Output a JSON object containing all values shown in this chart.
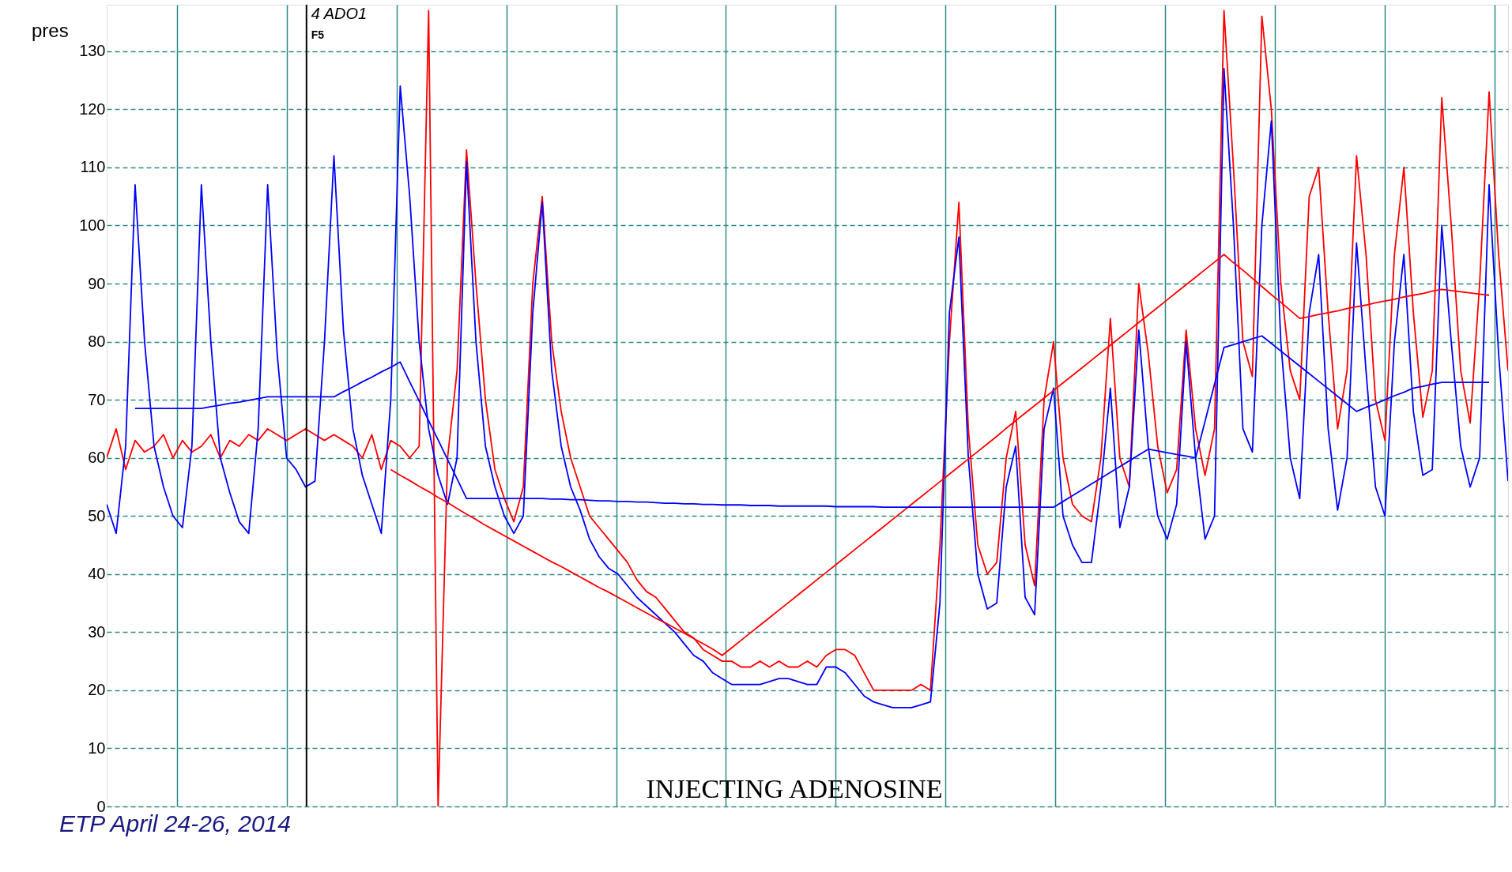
{
  "chart_data": {
    "type": "line",
    "ylabel": "pres",
    "grid": true,
    "tick_labels": "y",
    "marker": "none",
    "line_style": "solid",
    "categories": [
      null,
      null,
      null,
      null,
      null,
      null,
      null,
      null,
      null,
      null,
      null,
      null,
      null,
      null,
      null,
      null,
      null,
      null,
      null,
      null,
      null,
      null,
      null,
      null,
      null,
      null,
      null,
      null,
      null,
      null,
      null,
      null,
      null,
      null,
      null,
      null,
      null,
      null,
      null,
      null,
      null,
      null,
      null,
      null,
      null,
      null,
      null,
      null,
      null,
      null,
      null,
      null,
      null,
      null,
      null,
      null,
      null,
      null,
      null,
      null,
      null,
      null,
      null,
      null,
      null,
      null,
      null,
      null,
      null,
      null,
      null,
      null,
      null,
      null,
      null,
      null,
      null,
      null,
      null,
      null,
      null,
      null,
      null,
      null,
      null,
      null,
      null,
      null,
      null,
      null,
      null,
      null,
      null,
      null,
      null,
      null,
      null,
      null,
      null,
      null,
      null,
      null,
      null,
      null,
      null,
      null,
      null,
      null,
      null,
      null,
      null,
      null,
      null,
      null,
      null,
      null,
      null,
      null,
      null,
      null,
      null,
      null,
      null,
      null,
      null,
      null,
      null,
      null,
      null,
      null,
      null,
      null,
      null,
      null,
      null,
      null,
      null,
      null,
      null,
      null,
      null,
      null,
      null,
      null,
      null,
      null,
      null,
      null,
      null
    ],
    "ylim": [
      0,
      138
    ],
    "yticks": [
      0,
      10,
      20,
      30,
      40,
      50,
      60,
      70,
      80,
      90,
      100,
      110,
      120,
      130
    ],
    "series": [
      {
        "color": "#ff0000",
        "values": [
          60,
          65,
          58,
          63,
          61,
          62,
          64,
          60,
          63,
          61,
          62,
          64,
          60,
          63,
          62,
          64,
          63,
          65,
          64,
          63,
          64,
          65,
          64,
          63,
          64,
          63,
          62,
          60,
          64,
          58,
          63,
          62,
          60,
          62,
          137,
          0,
          60,
          75,
          113,
          90,
          70,
          58,
          53,
          49,
          55,
          90,
          105,
          80,
          68,
          60,
          55,
          50,
          48,
          46,
          44,
          42,
          39,
          37,
          36,
          34,
          32,
          30,
          29,
          27,
          26,
          25,
          25,
          24,
          24,
          25,
          24,
          25,
          24,
          24,
          25,
          24,
          26,
          27,
          27,
          26,
          23,
          20,
          20,
          20,
          20,
          20,
          21,
          20,
          45,
          80,
          104,
          65,
          45,
          40,
          42,
          60,
          68,
          45,
          38,
          70,
          80,
          60,
          52,
          50,
          49,
          60,
          84,
          60,
          55,
          90,
          78,
          62,
          54,
          58,
          82,
          65,
          57,
          65,
          137,
          110,
          80,
          74,
          136,
          120,
          90,
          75,
          70,
          105,
          110,
          85,
          65,
          75,
          112,
          95,
          70,
          63,
          95,
          110,
          85,
          67,
          75,
          122,
          100,
          75,
          66,
          90,
          123,
          95,
          75
        ]
      },
      {
        "color": "#0000ff",
        "values": [
          52,
          47,
          62,
          107,
          80,
          62,
          55,
          50,
          48,
          62,
          107,
          80,
          60,
          54,
          49,
          47,
          65,
          107,
          78,
          60,
          58,
          55,
          56,
          80,
          112,
          82,
          65,
          57,
          52,
          47,
          70,
          124,
          105,
          80,
          65,
          57,
          52,
          60,
          111,
          80,
          62,
          55,
          50,
          47,
          50,
          85,
          104,
          75,
          62,
          55,
          51,
          46,
          43,
          41,
          40,
          38,
          36,
          34.5,
          33,
          31.5,
          30,
          28,
          26,
          25,
          23,
          22,
          21,
          21,
          21,
          21,
          21.5,
          22,
          22,
          21.5,
          21,
          21,
          24,
          24,
          23,
          21,
          19,
          18,
          17.5,
          17,
          17,
          17,
          17.5,
          18,
          35,
          85,
          98,
          60,
          40,
          34,
          35,
          55,
          62,
          36,
          33,
          65,
          72,
          50,
          45,
          42,
          42,
          55,
          72,
          48,
          55,
          82,
          62,
          50,
          46,
          52,
          80,
          60,
          46,
          50,
          127,
          100,
          65,
          61,
          100,
          118,
          80,
          60,
          53,
          85,
          95,
          65,
          51,
          60,
          97,
          75,
          55,
          50,
          80,
          95,
          68,
          57,
          58,
          100,
          80,
          62,
          55,
          60,
          107,
          78,
          56
        ]
      },
      {
        "color": "#ff0000",
        "values": [
          null,
          null,
          null,
          null,
          null,
          null,
          null,
          null,
          null,
          null,
          null,
          null,
          null,
          null,
          null,
          null,
          null,
          null,
          null,
          null,
          null,
          null,
          null,
          null,
          null,
          null,
          null,
          null,
          null,
          null,
          58,
          57,
          56.1,
          55.1,
          54.2,
          53.2,
          52.3,
          51.3,
          50.3,
          49.4,
          48.4,
          47.5,
          46.6,
          45.7,
          44.8,
          43.9,
          43,
          42.1,
          41.3,
          40.4,
          39.5,
          38.6,
          37.7,
          36.9,
          36,
          35.1,
          34.2,
          33.3,
          32.4,
          31.6,
          30.7,
          29.8,
          28.9,
          28,
          27.1,
          26,
          27.3,
          28.6,
          29.9,
          31.2,
          32.5,
          33.8,
          35.1,
          36.4,
          37.7,
          39,
          40.3,
          41.6,
          42.9,
          44.2,
          45.5,
          46.8,
          48.1,
          49.4,
          50.7,
          52,
          53.3,
          54.6,
          55.9,
          57.2,
          58.5,
          59.8,
          61.1,
          62.4,
          63.7,
          65.1,
          66.4,
          67.7,
          69,
          70.3,
          71.6,
          72.9,
          74.2,
          75.5,
          76.8,
          78.1,
          79.4,
          80.7,
          82,
          83.3,
          84.6,
          85.9,
          87.2,
          88.5,
          89.8,
          91.1,
          92.4,
          93.7,
          95,
          93.6,
          92.3,
          90.9,
          89.5,
          88.1,
          86.8,
          85.4,
          84,
          84.3,
          84.7,
          85,
          85.3,
          85.7,
          86,
          86.3,
          86.7,
          87,
          87.3,
          87.7,
          88,
          88.3,
          88.7,
          89,
          88.8,
          88.6,
          88.4,
          88.2,
          88,
          null,
          null
        ]
      },
      {
        "color": "#0000ff",
        "values": [
          null,
          null,
          null,
          68.5,
          68.5,
          68.5,
          68.5,
          68.5,
          68.5,
          68.5,
          68.5,
          68.8,
          69.1,
          69.4,
          69.6,
          69.9,
          70.2,
          70.5,
          70.5,
          70.5,
          70.5,
          70.5,
          70.5,
          70.5,
          70.5,
          71.4,
          72.2,
          73.1,
          73.9,
          74.8,
          75.6,
          76.5,
          73.1,
          69.8,
          66.4,
          63.1,
          59.7,
          56.4,
          53,
          53,
          53,
          53,
          53,
          53,
          53,
          53,
          53,
          52.9,
          52.9,
          52.8,
          52.8,
          52.7,
          52.6,
          52.6,
          52.5,
          52.5,
          52.4,
          52.4,
          52.3,
          52.2,
          52.2,
          52.1,
          52.1,
          52,
          52,
          51.9,
          51.9,
          51.9,
          51.8,
          51.8,
          51.8,
          51.7,
          51.7,
          51.7,
          51.7,
          51.7,
          51.7,
          51.6,
          51.6,
          51.6,
          51.6,
          51.6,
          51.5,
          51.5,
          51.5,
          51.5,
          51.5,
          51.5,
          51.5,
          51.5,
          51.5,
          51.5,
          51.5,
          51.5,
          51.5,
          51.5,
          51.5,
          51.5,
          51.5,
          51.5,
          51.5,
          52.5,
          53.5,
          54.5,
          55.5,
          56.5,
          57.5,
          58.5,
          59.5,
          60.5,
          61.5,
          61.2,
          60.9,
          60.6,
          60.3,
          60,
          66.3,
          72.7,
          79,
          79.5,
          80,
          80.5,
          81,
          79.7,
          78.4,
          77.1,
          75.8,
          74.5,
          73.2,
          71.9,
          70.6,
          69.3,
          68,
          68.7,
          69.3,
          70,
          70.7,
          71.3,
          72,
          72.3,
          72.7,
          73,
          73,
          73,
          73,
          73,
          73,
          null,
          null
        ]
      }
    ],
    "annotations": [
      "4 ADO1",
      "F5",
      "INJECTING ADENOSINE",
      "ETP April 24-26, 2014"
    ]
  }
}
